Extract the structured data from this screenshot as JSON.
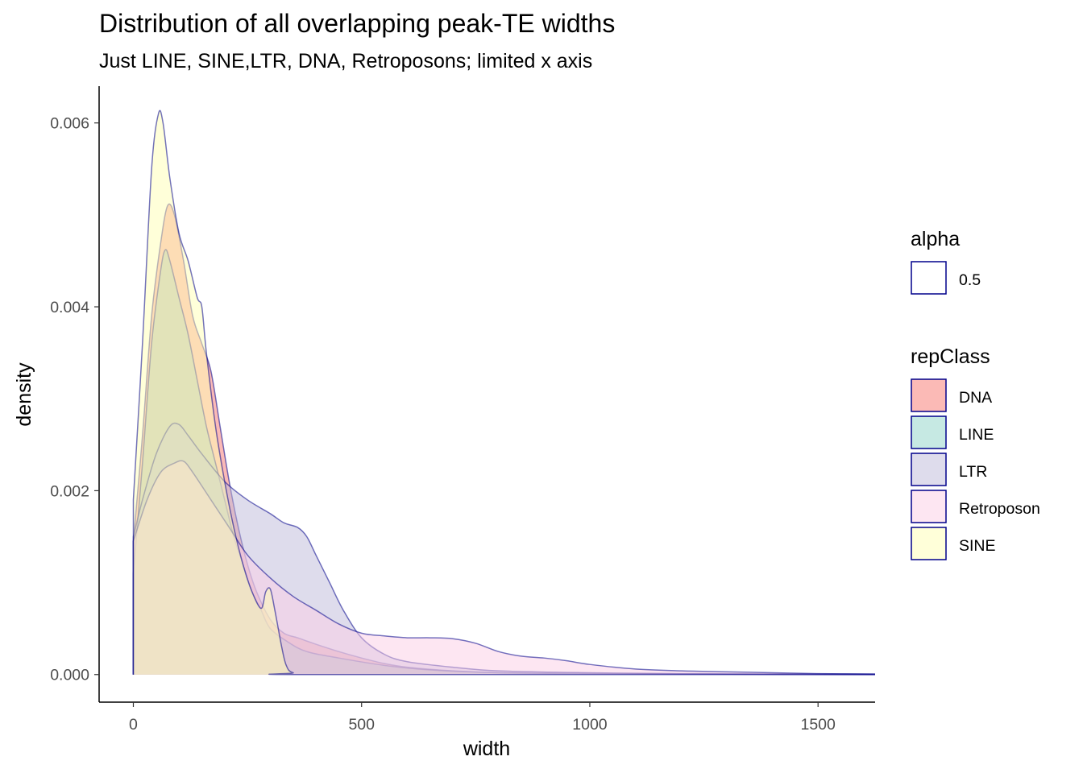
{
  "chart_data": {
    "type": "area",
    "title": "Distribution of all overlapping peak-TE widths",
    "subtitle": "Just LINE, SINE,LTR, DNA, Retroposons; limited x axis",
    "xlabel": "width",
    "ylabel": "density",
    "xlim": [
      -75,
      1625
    ],
    "ylim": [
      -0.0003,
      0.0064
    ],
    "x_ticks": [
      0,
      500,
      1000,
      1500
    ],
    "x_tick_labels": [
      "0",
      "500",
      "1000",
      "1500"
    ],
    "y_ticks": [
      0,
      0.002,
      0.004,
      0.006
    ],
    "y_tick_labels": [
      "0.000",
      "0.002",
      "0.004",
      "0.006"
    ],
    "grid": false,
    "legend_position": "right",
    "outline_color": "#00008B",
    "alpha_legend": {
      "title": "alpha",
      "label": "0.5"
    },
    "fill_legend_title": "repClass",
    "series": [
      {
        "name": "DNA",
        "color": "#F8766D",
        "points": [
          [
            0,
            0.00145
          ],
          [
            20,
            0.0026
          ],
          [
            40,
            0.0039
          ],
          [
            60,
            0.0047
          ],
          [
            75,
            0.0051
          ],
          [
            90,
            0.005
          ],
          [
            110,
            0.0045
          ],
          [
            130,
            0.0039
          ],
          [
            150,
            0.0036
          ],
          [
            170,
            0.0033
          ],
          [
            190,
            0.0027
          ],
          [
            210,
            0.0021
          ],
          [
            230,
            0.0016
          ],
          [
            250,
            0.0012
          ],
          [
            270,
            0.0009
          ],
          [
            300,
            0.0006
          ],
          [
            330,
            0.00045
          ],
          [
            360,
            0.0004
          ],
          [
            400,
            0.00033
          ],
          [
            450,
            0.00025
          ],
          [
            500,
            0.00018
          ],
          [
            550,
            0.00012
          ],
          [
            600,
            8e-05
          ],
          [
            700,
            4e-05
          ],
          [
            800,
            2e-05
          ],
          [
            1000,
            1e-05
          ],
          [
            1625,
            0
          ]
        ]
      },
      {
        "name": "LINE",
        "color": "#8DD3C7",
        "points": [
          [
            0,
            0.0011
          ],
          [
            20,
            0.0023
          ],
          [
            40,
            0.0036
          ],
          [
            60,
            0.0044
          ],
          [
            70,
            0.00462
          ],
          [
            80,
            0.0045
          ],
          [
            100,
            0.0041
          ],
          [
            120,
            0.0037
          ],
          [
            140,
            0.0032
          ],
          [
            160,
            0.0027
          ],
          [
            180,
            0.0023
          ],
          [
            200,
            0.0019
          ],
          [
            220,
            0.0015
          ],
          [
            240,
            0.0012
          ],
          [
            260,
            0.0009
          ],
          [
            280,
            0.0007
          ],
          [
            300,
            0.0005
          ],
          [
            340,
            0.00035
          ],
          [
            380,
            0.00025
          ],
          [
            450,
            0.00018
          ],
          [
            550,
            0.0001
          ],
          [
            650,
            5e-05
          ],
          [
            800,
            2e-05
          ],
          [
            1000,
            1e-05
          ],
          [
            1625,
            0
          ]
        ]
      },
      {
        "name": "LTR",
        "color": "#BEBADA",
        "points": [
          [
            0,
            0.0015
          ],
          [
            20,
            0.0019
          ],
          [
            50,
            0.0024
          ],
          [
            80,
            0.0027
          ],
          [
            100,
            0.00272
          ],
          [
            120,
            0.0026
          ],
          [
            150,
            0.0024
          ],
          [
            200,
            0.0021
          ],
          [
            250,
            0.0019
          ],
          [
            300,
            0.00175
          ],
          [
            330,
            0.00165
          ],
          [
            360,
            0.0016
          ],
          [
            380,
            0.0015
          ],
          [
            400,
            0.0013
          ],
          [
            430,
            0.001
          ],
          [
            460,
            0.0007
          ],
          [
            500,
            0.0004
          ],
          [
            550,
            0.00022
          ],
          [
            600,
            0.00014
          ],
          [
            700,
            8e-05
          ],
          [
            800,
            4e-05
          ],
          [
            1000,
            2e-05
          ],
          [
            1200,
            1e-05
          ],
          [
            1625,
            5e-06
          ]
        ]
      },
      {
        "name": "Retroposon",
        "color": "#FCCDE5",
        "points": [
          [
            0,
            0.00145
          ],
          [
            30,
            0.0019
          ],
          [
            60,
            0.0022
          ],
          [
            90,
            0.0023
          ],
          [
            110,
            0.00232
          ],
          [
            130,
            0.0022
          ],
          [
            170,
            0.0019
          ],
          [
            210,
            0.0016
          ],
          [
            250,
            0.0013
          ],
          [
            300,
            0.00105
          ],
          [
            350,
            0.00085
          ],
          [
            400,
            0.0007
          ],
          [
            450,
            0.00055
          ],
          [
            500,
            0.00045
          ],
          [
            550,
            0.00042
          ],
          [
            600,
            0.0004
          ],
          [
            650,
            0.0004
          ],
          [
            700,
            0.00039
          ],
          [
            750,
            0.00034
          ],
          [
            800,
            0.00025
          ],
          [
            850,
            0.0002
          ],
          [
            900,
            0.00018
          ],
          [
            950,
            0.00015
          ],
          [
            1000,
            0.00011
          ],
          [
            1100,
            6e-05
          ],
          [
            1200,
            4e-05
          ],
          [
            1300,
            3e-05
          ],
          [
            1400,
            2e-05
          ],
          [
            1500,
            1e-05
          ],
          [
            1625,
            5e-06
          ]
        ]
      },
      {
        "name": "SINE",
        "color": "#FFFFB3",
        "points": [
          [
            0,
            0.0019
          ],
          [
            20,
            0.0036
          ],
          [
            40,
            0.0055
          ],
          [
            55,
            0.0061
          ],
          [
            65,
            0.006
          ],
          [
            80,
            0.0054
          ],
          [
            100,
            0.0048
          ],
          [
            120,
            0.0045
          ],
          [
            140,
            0.0041
          ],
          [
            150,
            0.004
          ],
          [
            160,
            0.0035
          ],
          [
            180,
            0.0027
          ],
          [
            200,
            0.0021
          ],
          [
            220,
            0.0016
          ],
          [
            240,
            0.0012
          ],
          [
            260,
            0.0009
          ],
          [
            280,
            0.00072
          ],
          [
            290,
            0.0009
          ],
          [
            300,
            0.00093
          ],
          [
            310,
            0.0007
          ],
          [
            325,
            0.0003
          ],
          [
            335,
            0.0001
          ],
          [
            350,
            2e-05
          ],
          [
            400,
            0
          ],
          [
            1625,
            0
          ]
        ]
      }
    ]
  }
}
